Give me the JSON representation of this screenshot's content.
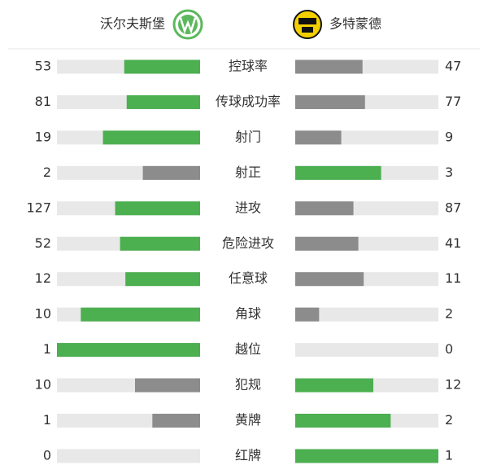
{
  "chart_data": {
    "type": "butterfly",
    "categories": [
      "控球率",
      "传球成功率",
      "射门",
      "射正",
      "进攻",
      "危险进攻",
      "任意球",
      "角球",
      "越位",
      "犯规",
      "黄牌",
      "红牌"
    ],
    "series": [
      {
        "name": "沃尔夫斯堡",
        "values": [
          53,
          81,
          19,
          2,
          127,
          52,
          12,
          10,
          1,
          10,
          1,
          0
        ]
      },
      {
        "name": "多特蒙德",
        "values": [
          47,
          77,
          9,
          3,
          87,
          41,
          11,
          2,
          0,
          12,
          2,
          1
        ]
      }
    ],
    "higher_color": "#4caf50",
    "lower_color": "#8c8c8c",
    "track_color": "#e8e8e8"
  }
}
